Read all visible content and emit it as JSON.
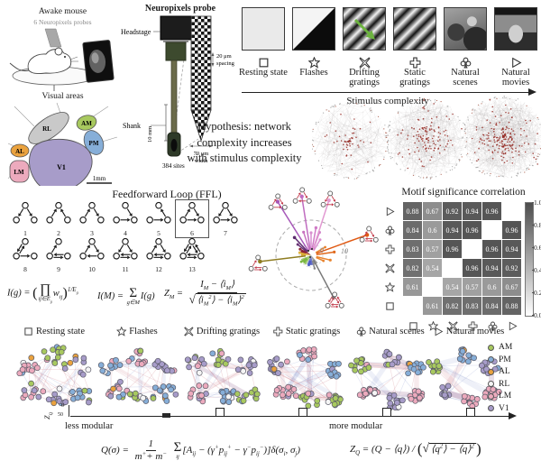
{
  "colors": {
    "accent_red": "#c23b4a",
    "area_AM": "#a8c95f",
    "area_PM": "#86aed8",
    "area_AL": "#eaa23e",
    "area_RL": "#f5f5f5",
    "area_LM": "#ecaabd",
    "area_V1": "#a79cc9"
  },
  "mouse_panel": {
    "title": "Awake mouse",
    "subtitle": "6 Neuropixels probes",
    "visual_areas_title": "Visual areas",
    "scale_label": "1mm",
    "areas": [
      "RL",
      "AM",
      "PM",
      "AL",
      "LM",
      "V1"
    ]
  },
  "probe_panel": {
    "title": "Neuropixels probe",
    "headstage": "Headstage",
    "spacing_line1": "20 μm",
    "spacing_line2": "spacing",
    "width_line1": "70 μm",
    "width_line2": "width",
    "shank": "Shank",
    "length": "10 mm",
    "sites": "384 sites"
  },
  "stimuli": {
    "axis_label": "Stimulus complexity",
    "items": [
      {
        "label": "Resting state",
        "icon": "square"
      },
      {
        "label": "Flashes",
        "icon": "star"
      },
      {
        "label": "Drifting gratings",
        "icon": "bowtie"
      },
      {
        "label": "Static gratings",
        "icon": "plus"
      },
      {
        "label": "Natural scenes",
        "icon": "club"
      },
      {
        "label": "Natural movies",
        "icon": "triangle"
      }
    ]
  },
  "hypothesis": {
    "line1": "Hypothesis: network",
    "line2": "complexity increases",
    "line3": "with stimulus complexity"
  },
  "motif_panel": {
    "title": "Feedforward Loop (FFL)",
    "count": 13,
    "boxed": 6
  },
  "formulas": {
    "ig_lhs": "I(g) =",
    "ig_op": "∏",
    "ig_op_sub": "ij∈E_{g}",
    "ig_term": "w_{ij}",
    "ig_sup": "1/E_{g}",
    "im_lhs": "I(M) =",
    "im_op": "Σ",
    "im_op_sub": "g∈M",
    "im_rhs": "I(g)",
    "zm_lhs": "Z_{M} =",
    "zm_num": "I_{M} − ⟨i_{M}⟩",
    "zm_den": "⟨i_{M}^{2}⟩ − ⟨i_{M}⟩^{2}",
    "q_lhs": "Q(σ) =",
    "q_num": "1",
    "q_den": "m^{+} + m^{−}",
    "q_op": "Σ",
    "q_op_sub": "ij",
    "q_rhs": "[A_{ij} − (γ^{+}p_{ij}^{+} − γ^{−}p_{ij}^{−})]δ(σ_{i}, σ_{j})",
    "zq_pre": "Z_{Q} = (Q − ⟨q⟩) /",
    "zq_sqrt": "⟨q^{2}⟩ − ⟨q⟩^{2}"
  },
  "radial": {
    "tick_inner": "0",
    "tick_outer": "10"
  },
  "heatmap": {
    "title": "Motif significance correlation",
    "col_icons": [
      "square",
      "star",
      "bowtie",
      "plus",
      "club",
      "triangle"
    ],
    "row_icons": [
      "triangle",
      "club",
      "plus",
      "bowtie",
      "star",
      "square"
    ],
    "matrix": [
      [
        0.88,
        0.67,
        0.92,
        0.94,
        0.96,
        null
      ],
      [
        0.84,
        0.6,
        0.94,
        0.96,
        null,
        0.96
      ],
      [
        0.83,
        0.57,
        0.96,
        null,
        0.96,
        0.94
      ],
      [
        0.82,
        0.54,
        null,
        0.96,
        0.94,
        0.92
      ],
      [
        0.61,
        null,
        0.54,
        0.57,
        0.6,
        0.67
      ],
      [
        null,
        0.61,
        0.82,
        0.83,
        0.84,
        0.88
      ]
    ],
    "colorbar_ticks": [
      "1.0",
      "0.8",
      "0.6",
      "0.4",
      "0.2",
      "0.0"
    ]
  },
  "chart_data": {
    "type": "heatmap",
    "title": "Motif significance correlation",
    "rows": [
      "natural movies",
      "natural scenes",
      "static gratings",
      "drifting gratings",
      "flashes",
      "resting state"
    ],
    "cols": [
      "resting state",
      "flashes",
      "drifting gratings",
      "static gratings",
      "natural scenes",
      "natural movies"
    ],
    "values": [
      [
        0.88,
        0.67,
        0.92,
        0.94,
        0.96,
        null
      ],
      [
        0.84,
        0.6,
        0.94,
        0.96,
        null,
        0.96
      ],
      [
        0.83,
        0.57,
        0.96,
        null,
        0.96,
        0.94
      ],
      [
        0.82,
        0.54,
        null,
        0.96,
        0.94,
        0.92
      ],
      [
        0.61,
        null,
        0.54,
        0.57,
        0.6,
        0.67
      ],
      [
        null,
        0.61,
        0.82,
        0.83,
        0.84,
        0.88
      ]
    ],
    "colorbar_range": [
      0,
      1
    ],
    "diagonal": "blank"
  },
  "network_section": {
    "headers": [
      {
        "label": "Resting state",
        "icon": "square"
      },
      {
        "label": "Flashes",
        "icon": "star"
      },
      {
        "label": "Drifting gratings",
        "icon": "bowtie"
      },
      {
        "label": "Static gratings",
        "icon": "plus"
      },
      {
        "label": "Natural scenes",
        "icon": "club"
      },
      {
        "label": "Natural movies",
        "icon": "triangle"
      }
    ],
    "legend": [
      {
        "label": "AM",
        "color": "#a8c95f"
      },
      {
        "label": "PM",
        "color": "#86aed8"
      },
      {
        "label": "AL",
        "color": "#eaa23e"
      },
      {
        "label": "RL",
        "color": "#f5f5f5"
      },
      {
        "label": "LM",
        "color": "#ecaabd"
      },
      {
        "label": "V1",
        "color": "#a79cc9"
      }
    ]
  },
  "modularity_axis": {
    "label": "Z_{Q}",
    "tick_min": "0",
    "tick_max": "50",
    "less": "less modular",
    "more": "more modular"
  }
}
